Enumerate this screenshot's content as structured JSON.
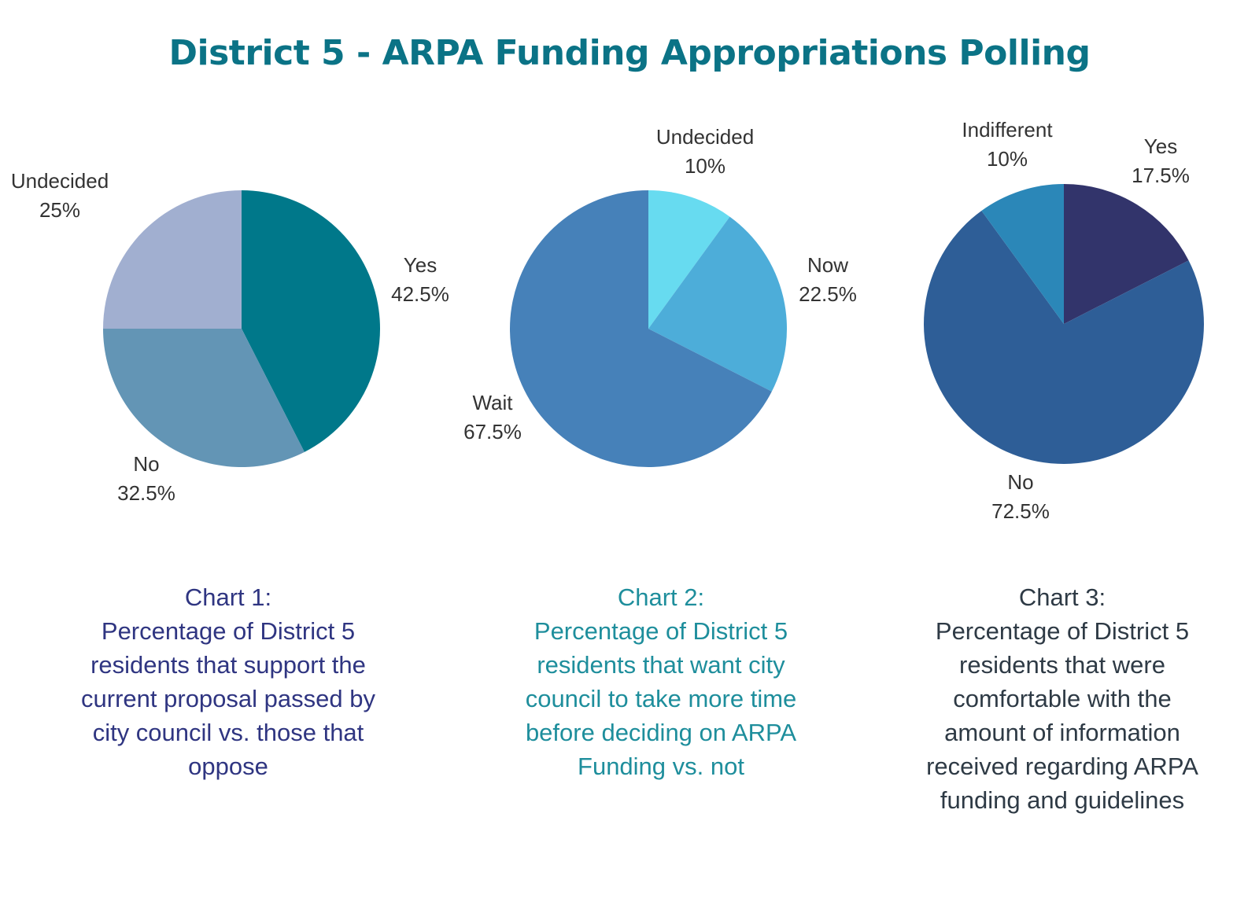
{
  "title": "District 5 - ARPA Funding Appropriations Polling",
  "chart_data": [
    {
      "type": "pie",
      "slices": [
        {
          "label": "Yes",
          "value": 42.5,
          "display": "42.5%",
          "color": "#00788a"
        },
        {
          "label": "No",
          "value": 32.5,
          "display": "32.5%",
          "color": "#6395b5"
        },
        {
          "label": "Undecided",
          "value": 25,
          "display": "25%",
          "color": "#a1afd0"
        }
      ],
      "caption_heading": "Chart 1:",
      "caption": "Percentage of District 5 residents that support the current proposal passed by city council vs. those that oppose",
      "caption_color": "#2f3581"
    },
    {
      "type": "pie",
      "slices": [
        {
          "label": "Undecided",
          "value": 10,
          "display": "10%",
          "color": "#67dbf0"
        },
        {
          "label": "Now",
          "value": 22.5,
          "display": "22.5%",
          "color": "#4dadd9"
        },
        {
          "label": "Wait",
          "value": 67.5,
          "display": "67.5%",
          "color": "#4681b9"
        }
      ],
      "caption_heading": "Chart 2:",
      "caption": "Percentage of District 5 residents that want city council to take more time before deciding on ARPA Funding vs. not",
      "caption_color": "#1e8e9c"
    },
    {
      "type": "pie",
      "slices": [
        {
          "label": "Yes",
          "value": 17.5,
          "display": "17.5%",
          "color": "#32346b"
        },
        {
          "label": "No",
          "value": 72.5,
          "display": "72.5%",
          "color": "#2e5e97"
        },
        {
          "label": "Indifferent",
          "value": 10,
          "display": "10%",
          "color": "#2b87b8"
        }
      ],
      "caption_heading": "Chart 3:",
      "caption": "Percentage of District 5 residents that were comfortable with the amount of information received regarding ARPA funding and guidelines",
      "caption_color": "#2e3a45"
    }
  ]
}
